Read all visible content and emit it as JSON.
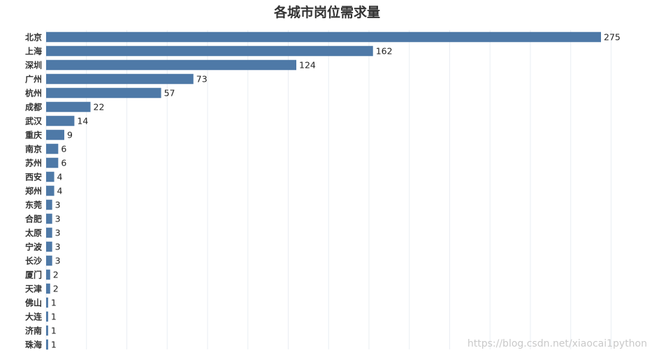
{
  "chart_data": {
    "type": "bar",
    "orientation": "horizontal",
    "title": "各城市岗位需求量",
    "xlabel": "",
    "ylabel": "",
    "xlim": [
      0,
      280
    ],
    "grid": true,
    "bar_color": "#4e79a7",
    "categories": [
      "北京",
      "上海",
      "深圳",
      "广州",
      "杭州",
      "成都",
      "武汉",
      "重庆",
      "南京",
      "苏州",
      "西安",
      "郑州",
      "东莞",
      "合肥",
      "太原",
      "宁波",
      "长沙",
      "厦门",
      "天津",
      "佛山",
      "大连",
      "济南",
      "珠海"
    ],
    "values": [
      275,
      162,
      124,
      73,
      57,
      22,
      14,
      9,
      6,
      6,
      4,
      4,
      3,
      3,
      3,
      3,
      3,
      2,
      2,
      1,
      1,
      1,
      1
    ]
  },
  "watermark": "https://blog.csdn.net/xiaocai1python"
}
